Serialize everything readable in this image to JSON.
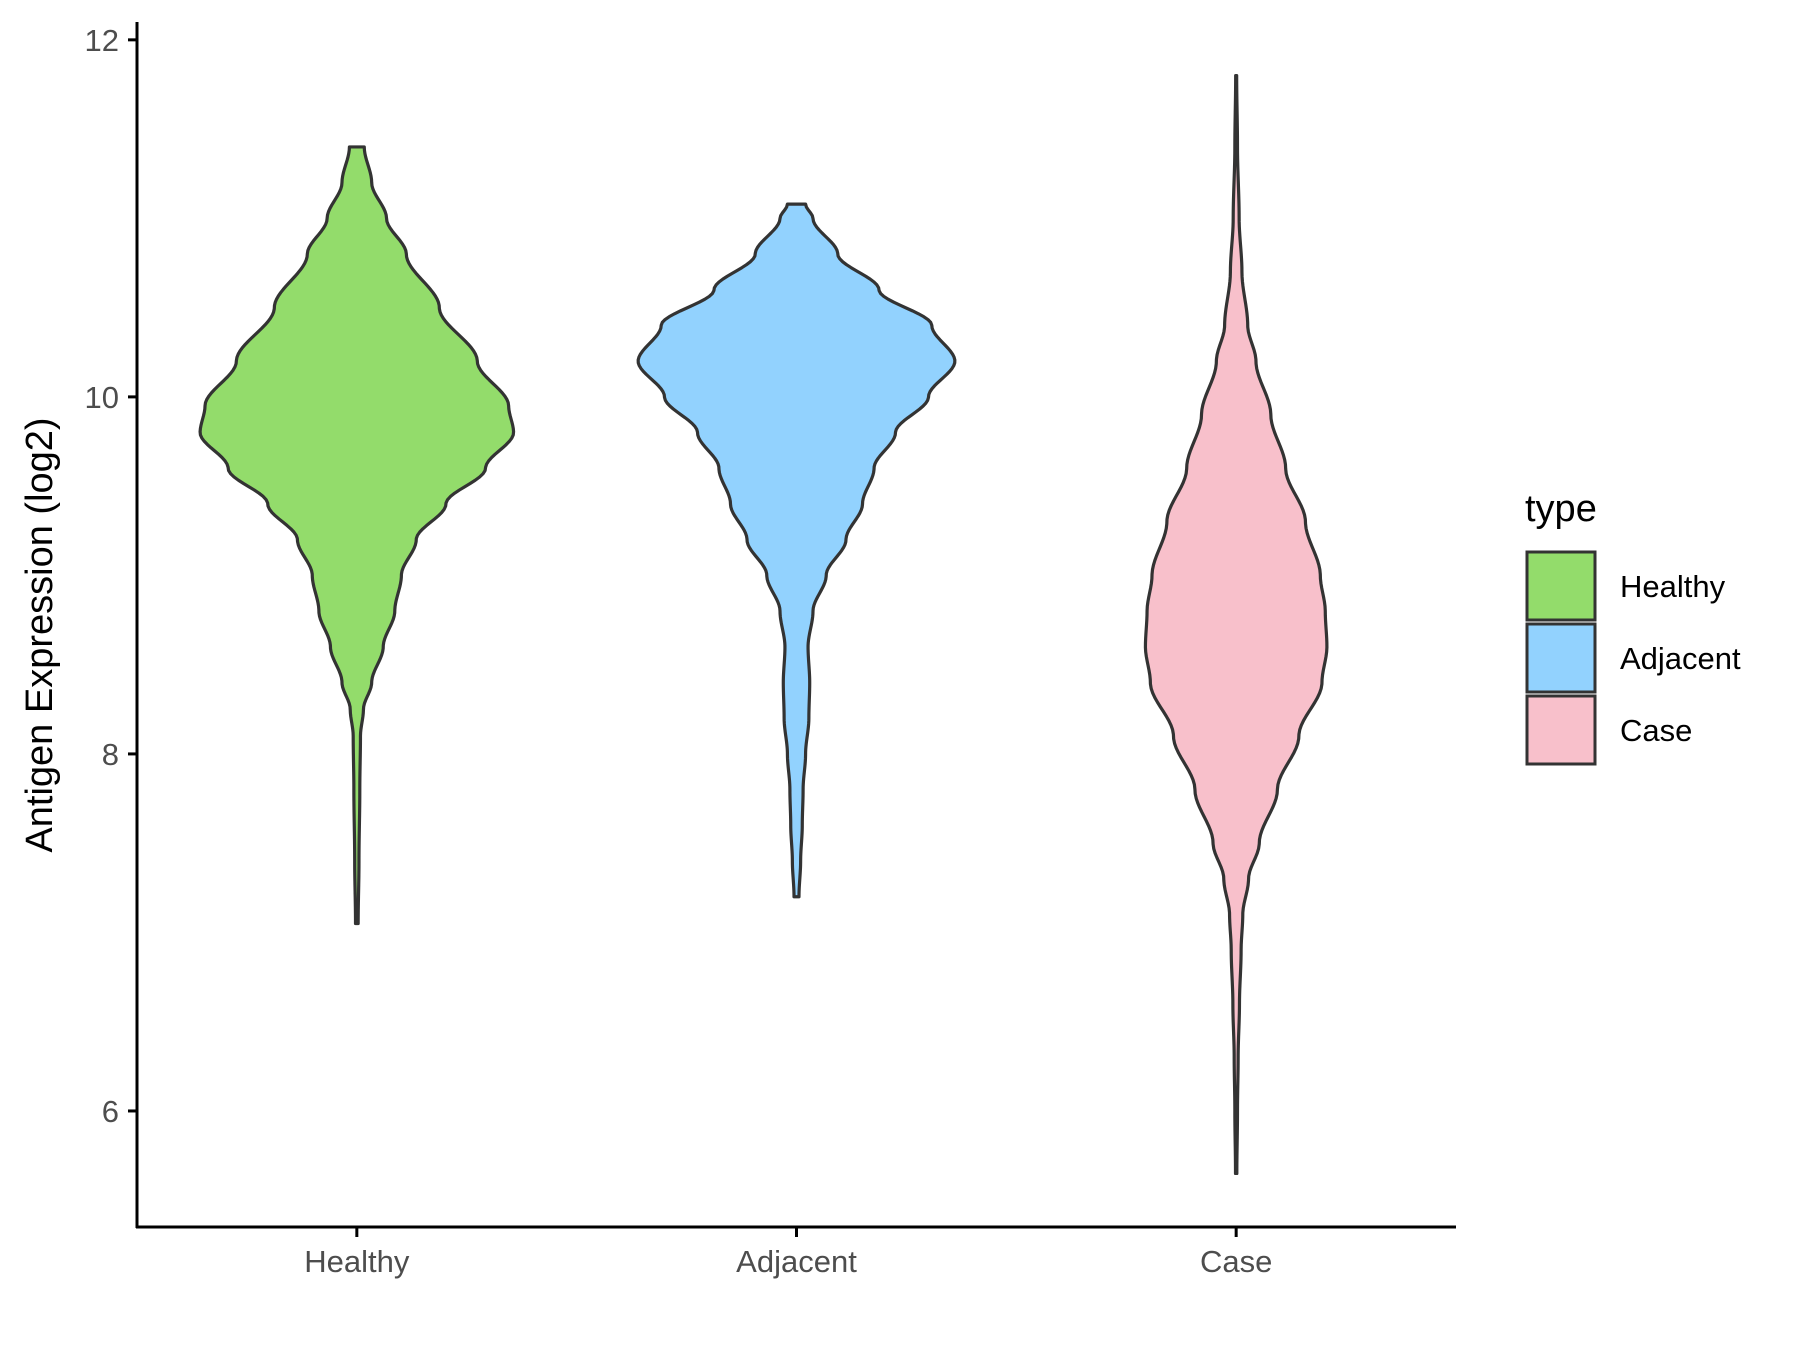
{
  "chart_data": {
    "type": "violin",
    "xlabel": "",
    "ylabel": "Antigen Expression (log2)",
    "ylim": [
      5.35,
      12.1
    ],
    "yticks": [
      6,
      8,
      10,
      12
    ],
    "grid": false,
    "categories": [
      "Healthy",
      "Adjacent",
      "Case"
    ],
    "legend": {
      "title": "type",
      "position": "right",
      "entries": [
        "Healthy",
        "Adjacent",
        "Case"
      ]
    },
    "series": [
      {
        "name": "Healthy",
        "color": "#93dc6b",
        "min": 7.05,
        "max": 11.4,
        "profile": [
          [
            7.05,
            0.008
          ],
          [
            7.4,
            0.013
          ],
          [
            7.8,
            0.018
          ],
          [
            8.1,
            0.022
          ],
          [
            8.25,
            0.04
          ],
          [
            8.4,
            0.09
          ],
          [
            8.6,
            0.16
          ],
          [
            8.8,
            0.23
          ],
          [
            9.0,
            0.27
          ],
          [
            9.2,
            0.36
          ],
          [
            9.4,
            0.54
          ],
          [
            9.6,
            0.78
          ],
          [
            9.8,
            0.95
          ],
          [
            9.95,
            0.92
          ],
          [
            10.2,
            0.73
          ],
          [
            10.5,
            0.5
          ],
          [
            10.8,
            0.3
          ],
          [
            11.0,
            0.18
          ],
          [
            11.2,
            0.09
          ],
          [
            11.4,
            0.045
          ]
        ]
      },
      {
        "name": "Adjacent",
        "color": "#92d2fe",
        "min": 7.2,
        "max": 11.08,
        "profile": [
          [
            7.2,
            0.015
          ],
          [
            7.4,
            0.025
          ],
          [
            7.6,
            0.035
          ],
          [
            7.8,
            0.04
          ],
          [
            8.0,
            0.055
          ],
          [
            8.2,
            0.075
          ],
          [
            8.4,
            0.08
          ],
          [
            8.6,
            0.07
          ],
          [
            8.8,
            0.1
          ],
          [
            9.0,
            0.18
          ],
          [
            9.2,
            0.3
          ],
          [
            9.4,
            0.4
          ],
          [
            9.6,
            0.47
          ],
          [
            9.8,
            0.6
          ],
          [
            10.0,
            0.8
          ],
          [
            10.2,
            0.96
          ],
          [
            10.4,
            0.82
          ],
          [
            10.6,
            0.5
          ],
          [
            10.8,
            0.25
          ],
          [
            11.0,
            0.1
          ],
          [
            11.08,
            0.055
          ]
        ]
      },
      {
        "name": "Case",
        "color": "#f8c0cb",
        "min": 5.65,
        "max": 11.8,
        "profile": [
          [
            5.65,
            0.004
          ],
          [
            6.0,
            0.008
          ],
          [
            6.3,
            0.012
          ],
          [
            6.6,
            0.02
          ],
          [
            6.9,
            0.03
          ],
          [
            7.1,
            0.04
          ],
          [
            7.3,
            0.075
          ],
          [
            7.5,
            0.14
          ],
          [
            7.8,
            0.25
          ],
          [
            8.1,
            0.38
          ],
          [
            8.4,
            0.52
          ],
          [
            8.6,
            0.55
          ],
          [
            8.8,
            0.54
          ],
          [
            9.0,
            0.51
          ],
          [
            9.3,
            0.42
          ],
          [
            9.6,
            0.3
          ],
          [
            9.9,
            0.21
          ],
          [
            10.2,
            0.12
          ],
          [
            10.4,
            0.07
          ],
          [
            10.7,
            0.035
          ],
          [
            11.0,
            0.018
          ],
          [
            11.4,
            0.008
          ],
          [
            11.8,
            0.003
          ]
        ]
      }
    ]
  }
}
